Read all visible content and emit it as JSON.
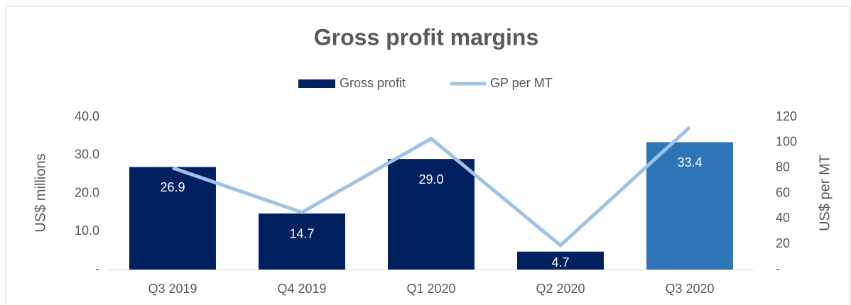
{
  "chart_data": {
    "type": "bar_line",
    "title": "Gross profit margins",
    "categories": [
      "Q3 2019",
      "Q4 2019",
      "Q1 2020",
      "Q2 2020",
      "Q3 2020"
    ],
    "series": [
      {
        "name": "Gross profit",
        "color": "#002060",
        "colors": [
          "#002060",
          "#002060",
          "#002060",
          "#002060",
          "#2e75b6"
        ],
        "values": [
          26.9,
          14.7,
          29.0,
          4.7,
          33.4
        ],
        "value_labels": [
          "26.9",
          "14.7",
          "29.0",
          "4.7",
          "33.4"
        ]
      },
      {
        "name": "GP per MT",
        "color": "#9dc3e6",
        "axis": "y2",
        "values": [
          80,
          45,
          103,
          19,
          112
        ]
      }
    ],
    "ylabel": "US$ millions",
    "y2label": "US$ per MT",
    "ylim": [
      0,
      40
    ],
    "yticks": [
      {
        "value": 0,
        "label": "-"
      },
      {
        "value": 10,
        "label": "10.0"
      },
      {
        "value": 20,
        "label": "20.0"
      },
      {
        "value": 30,
        "label": "30.0"
      },
      {
        "value": 40,
        "label": "40.0"
      }
    ],
    "y2lim": [
      0,
      120
    ],
    "y2ticks": [
      {
        "value": 0,
        "label": "-"
      },
      20,
      40,
      60,
      80,
      100,
      120
    ],
    "legend": "top"
  }
}
